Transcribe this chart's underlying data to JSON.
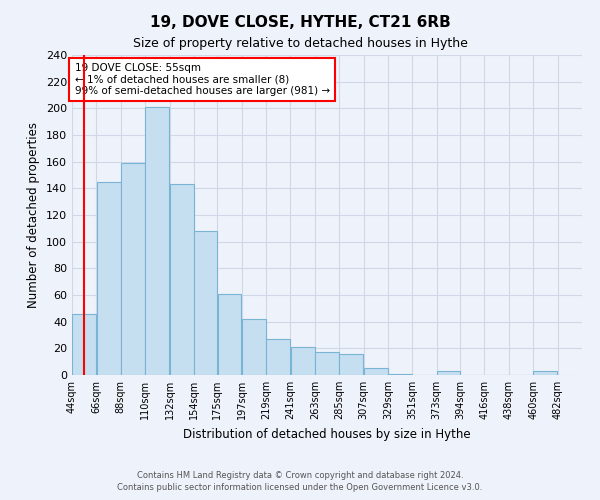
{
  "title": "19, DOVE CLOSE, HYTHE, CT21 6RB",
  "subtitle": "Size of property relative to detached houses in Hythe",
  "xlabel": "Distribution of detached houses by size in Hythe",
  "ylabel": "Number of detached properties",
  "bar_color": "#c5dff0",
  "bar_edge_color": "#7ab4d4",
  "bar_left_edges": [
    44,
    66,
    88,
    110,
    132,
    154,
    175,
    197,
    219,
    241,
    263,
    285,
    307,
    329,
    351,
    373,
    394,
    416,
    438,
    460
  ],
  "bar_widths": [
    22,
    22,
    22,
    22,
    22,
    21,
    22,
    22,
    22,
    22,
    22,
    22,
    22,
    22,
    22,
    21,
    22,
    22,
    22,
    22
  ],
  "bar_heights": [
    46,
    145,
    159,
    201,
    143,
    108,
    61,
    42,
    27,
    21,
    17,
    16,
    5,
    1,
    0,
    3,
    0,
    0,
    0,
    3
  ],
  "tick_labels": [
    "44sqm",
    "66sqm",
    "88sqm",
    "110sqm",
    "132sqm",
    "154sqm",
    "175sqm",
    "197sqm",
    "219sqm",
    "241sqm",
    "263sqm",
    "285sqm",
    "307sqm",
    "329sqm",
    "351sqm",
    "373sqm",
    "394sqm",
    "416sqm",
    "438sqm",
    "460sqm",
    "482sqm"
  ],
  "tick_positions": [
    44,
    66,
    88,
    110,
    132,
    154,
    175,
    197,
    219,
    241,
    263,
    285,
    307,
    329,
    351,
    373,
    394,
    416,
    438,
    460,
    482
  ],
  "xlim": [
    44,
    504
  ],
  "ylim": [
    0,
    240
  ],
  "yticks": [
    0,
    20,
    40,
    60,
    80,
    100,
    120,
    140,
    160,
    180,
    200,
    220,
    240
  ],
  "property_line_x": 55,
  "annotation_box_text": "19 DOVE CLOSE: 55sqm\n← 1% of detached houses are smaller (8)\n99% of semi-detached houses are larger (981) →",
  "footer_line1": "Contains HM Land Registry data © Crown copyright and database right 2024.",
  "footer_line2": "Contains public sector information licensed under the Open Government Licence v3.0.",
  "grid_color": "#d0d8e8",
  "background_color": "#eef2fa"
}
